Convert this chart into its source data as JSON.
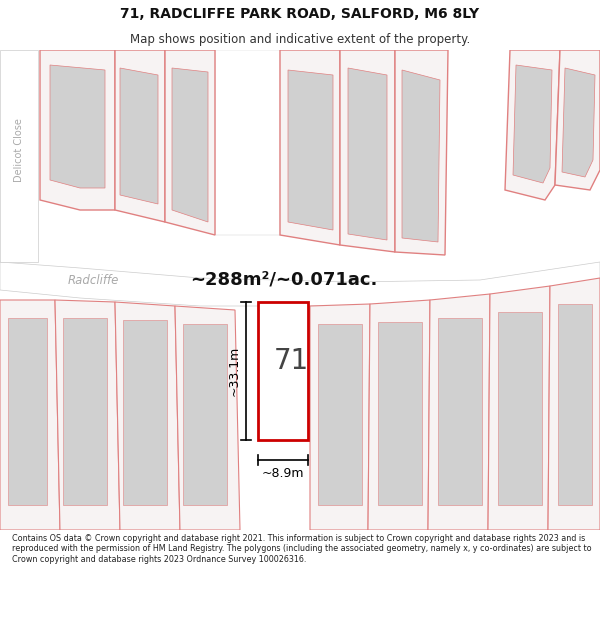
{
  "title": "71, RADCLIFFE PARK ROAD, SALFORD, M6 8LY",
  "subtitle": "Map shows position and indicative extent of the property.",
  "area_text": "~288m²/~0.071ac.",
  "number_label": "71",
  "dim_width": "~8.9m",
  "dim_height": "~33.1m",
  "street_radcliffe": "Radcliffe",
  "street_delicot": "Delicot Close",
  "footer": "Contains OS data © Crown copyright and database right 2021. This information is subject to Crown copyright and database rights 2023 and is reproduced with the permission of HM Land Registry. The polygons (including the associated geometry, namely x, y co-ordinates) are subject to Crown copyright and database rights 2023 Ordnance Survey 100026316.",
  "bg_color": "#ffffff",
  "map_bg": "#f7f3f3",
  "plot_line_color": "#e08080",
  "highlight_color": "#cc0000",
  "gray_fill": "#d0d0d0",
  "street_text_color": "#aaaaaa",
  "road_fill": "#ffffff"
}
